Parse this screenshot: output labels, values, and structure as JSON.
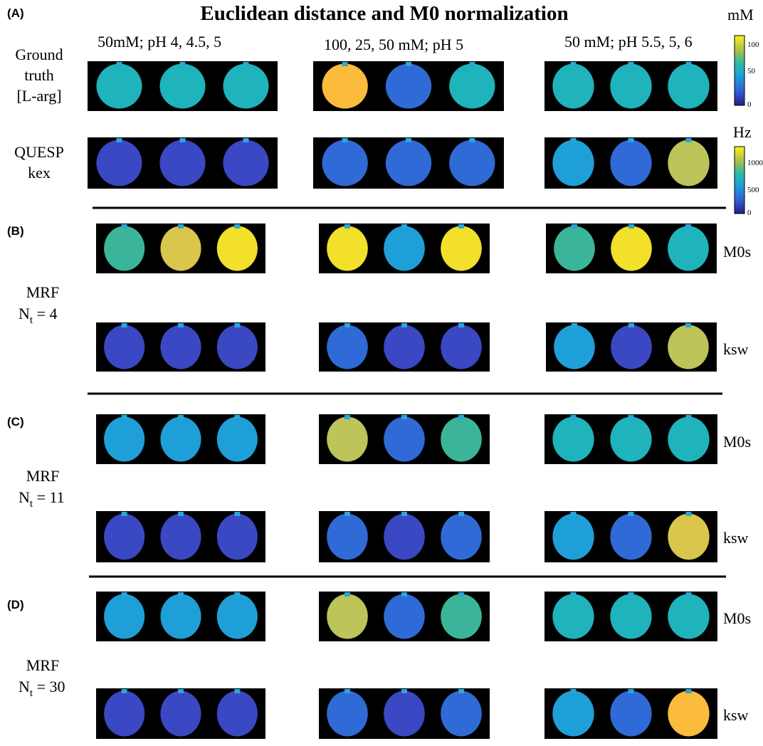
{
  "header": {
    "panel": "(A)",
    "title": "Euclidean distance and M0 normalization"
  },
  "columns": [
    "50mM; pH 4, 4.5, 5",
    "100, 25, 50 mM;  pH 5",
    "50 mM; pH 5.5, 5, 6"
  ],
  "colorbars": [
    {
      "unit": "mM",
      "ticks": [
        "100",
        "50",
        "0"
      ]
    },
    {
      "unit": "Hz",
      "ticks": [
        "1000",
        "500",
        "0"
      ]
    }
  ],
  "sections": [
    {
      "rows": [
        {
          "label": [
            "Ground",
            "truth",
            "[L-arg]"
          ]
        },
        {
          "label": [
            "QUESP",
            "kex"
          ]
        }
      ]
    },
    {
      "panel": "(B)",
      "method": "MRF",
      "n": "N",
      "sub": "t",
      "eq": " = 4",
      "rows": [
        {
          "label": "M0s"
        },
        {
          "label": "ksw"
        }
      ]
    },
    {
      "panel": "(C)",
      "method": "MRF",
      "n": "N",
      "sub": "t",
      "eq": " = 11",
      "rows": [
        {
          "label": "M0s"
        },
        {
          "label": "ksw"
        }
      ]
    },
    {
      "panel": "(D)",
      "method": "MRF",
      "n": "N",
      "sub": "t",
      "eq": " = 30",
      "rows": [
        {
          "label": "M0s"
        },
        {
          "label": "ksw"
        }
      ]
    }
  ]
}
